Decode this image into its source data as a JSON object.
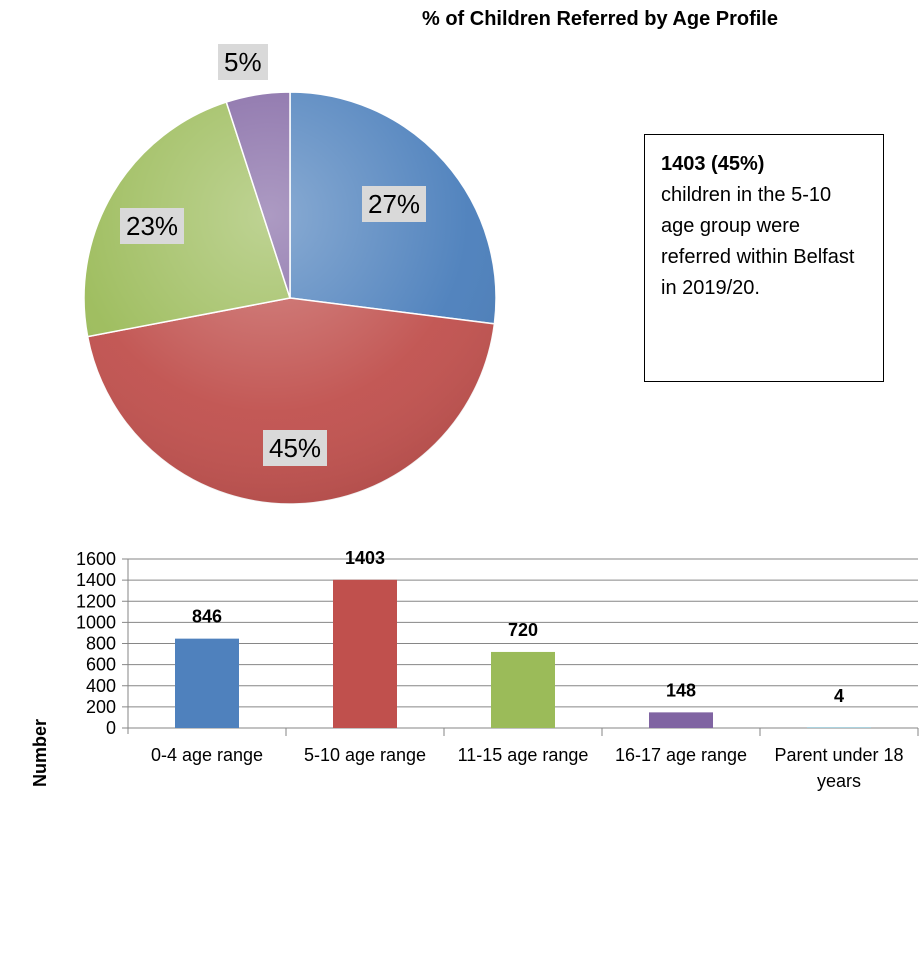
{
  "pie": {
    "title": "% of Children Referred by Age Profile",
    "slices": [
      {
        "label": "27%",
        "percent": 27,
        "color": "#4a7ebb"
      },
      {
        "label": "45%",
        "percent": 45,
        "color": "#c0504d"
      },
      {
        "label": "23%",
        "percent": 23,
        "color": "#9bbb59"
      },
      {
        "label": "5%",
        "percent": 5,
        "color": "#8064a2"
      }
    ]
  },
  "callout": {
    "bold_text": "1403 (45%)",
    "body_text": "children in the 5-10 age group were referred within Belfast in 2019/20."
  },
  "chart_data": [
    {
      "type": "pie",
      "title": "% of Children Referred by Age Profile",
      "values": [
        27,
        45,
        23,
        5
      ],
      "labels": [
        "27%",
        "45%",
        "23%",
        "5%"
      ]
    },
    {
      "type": "bar",
      "categories": [
        "0-4 age range",
        "5-10 age range",
        "11-15 age range",
        "16-17 age range",
        "Parent under 18 years"
      ],
      "values": [
        846,
        1403,
        720,
        148,
        4
      ],
      "data_labels": [
        "846",
        "1403",
        "720",
        "148",
        "4"
      ],
      "colors": [
        "#4f81bd",
        "#c0504d",
        "#9bbb59",
        "#8064a2",
        "#4bacc6"
      ],
      "ylabel": "Number",
      "ylim": [
        0,
        1600
      ],
      "yticks": [
        "0",
        "200",
        "400",
        "600",
        "800",
        "1000",
        "1200",
        "1400",
        "1600"
      ],
      "grid": true
    }
  ]
}
